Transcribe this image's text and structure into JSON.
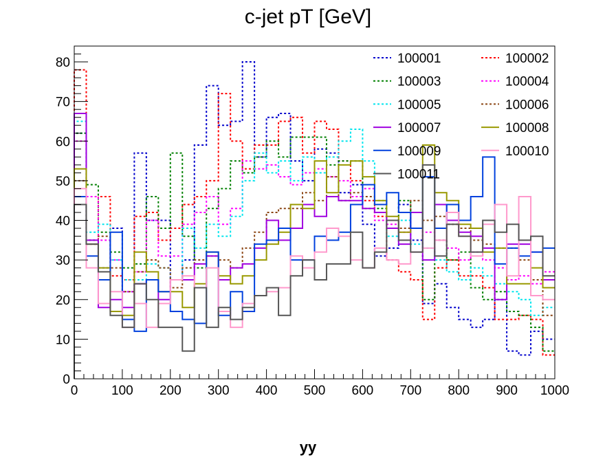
{
  "chart_data": {
    "type": "line",
    "title": "c-jet pT [GeV]",
    "xlabel": "yy",
    "ylabel": "",
    "xlim": [
      0,
      1000
    ],
    "ylim": [
      0,
      84
    ],
    "grid": false,
    "legend_placement": "top-right",
    "x_ticks": [
      "0",
      "100",
      "200",
      "300",
      "400",
      "500",
      "600",
      "700",
      "800",
      "900",
      "1000"
    ],
    "y_ticks": [
      "0",
      "10",
      "20",
      "30",
      "40",
      "50",
      "60",
      "70",
      "80"
    ],
    "bins": 40,
    "bin_width": 25,
    "x": [
      12.5,
      37.5,
      62.5,
      87.5,
      112.5,
      137.5,
      162.5,
      187.5,
      212.5,
      237.5,
      262.5,
      287.5,
      312.5,
      337.5,
      362.5,
      387.5,
      412.5,
      437.5,
      462.5,
      487.5,
      512.5,
      537.5,
      562.5,
      587.5,
      612.5,
      637.5,
      662.5,
      687.5,
      712.5,
      737.5,
      762.5,
      787.5,
      812.5,
      837.5,
      862.5,
      887.5,
      912.5,
      937.5,
      962.5,
      987.5
    ],
    "series": [
      {
        "name": "100001",
        "color": "#0000cc",
        "dash": "dotted",
        "values": [
          62,
          35,
          28,
          38,
          22,
          57,
          40,
          40,
          25,
          30,
          59,
          74,
          64,
          65,
          80,
          56,
          66,
          67,
          55,
          50,
          58,
          57,
          47,
          49,
          39,
          31,
          33,
          44,
          35,
          19,
          24,
          18,
          15,
          13,
          15,
          20,
          7,
          6,
          12,
          10
        ]
      },
      {
        "name": "100002",
        "color": "#ff0000",
        "dash": "dotted",
        "values": [
          78,
          34,
          46,
          26,
          25,
          41,
          42,
          35,
          38,
          44,
          46,
          50,
          72,
          60,
          53,
          59,
          59,
          65,
          66,
          57,
          65,
          63,
          55,
          50,
          45,
          41,
          30,
          27,
          25,
          15,
          28,
          30,
          26,
          26,
          23,
          15,
          15,
          16,
          15,
          6
        ]
      },
      {
        "name": "100003",
        "color": "#008000",
        "dash": "dotted",
        "values": [
          62,
          49,
          37,
          32,
          28,
          29,
          46,
          38,
          57,
          36,
          28,
          43,
          48,
          55,
          52,
          56,
          60,
          56,
          61,
          61,
          61,
          54,
          55,
          55,
          43,
          43,
          40,
          45,
          38,
          20,
          35,
          30,
          32,
          23,
          20,
          22,
          17,
          16,
          13,
          7
        ]
      },
      {
        "name": "100004",
        "color": "#ff00ff",
        "dash": "dotted",
        "values": [
          60,
          46,
          35,
          30,
          22,
          27,
          40,
          31,
          31,
          39,
          42,
          46,
          39,
          43,
          55,
          53,
          54,
          51,
          49,
          52,
          53,
          51,
          50,
          46,
          48,
          40,
          39,
          37,
          42,
          37,
          35,
          33,
          30,
          32,
          30,
          28,
          25,
          26,
          24,
          27
        ]
      },
      {
        "name": "100005",
        "color": "#00e5ee",
        "dash": "dotted",
        "values": [
          65,
          37,
          39,
          30,
          25,
          25,
          29,
          28,
          25,
          38,
          33,
          39,
          36,
          41,
          50,
          57,
          52,
          55,
          50,
          56,
          52,
          56,
          60,
          63,
          55,
          45,
          36,
          40,
          34,
          33,
          30,
          27,
          25,
          28,
          26,
          24,
          22,
          20,
          16,
          18
        ]
      },
      {
        "name": "100006",
        "color": "#8b4513",
        "dash": "dotted",
        "values": [
          50,
          35,
          36,
          28,
          22,
          27,
          30,
          28,
          23,
          28,
          30,
          31,
          30,
          28,
          33,
          37,
          42,
          43,
          43,
          47,
          45,
          51,
          45,
          47,
          46,
          42,
          40,
          38,
          45,
          40,
          41,
          39,
          38,
          35,
          34,
          33,
          33,
          30,
          25,
          16
        ]
      },
      {
        "name": "100007",
        "color": "#a000e0",
        "dash": "solid",
        "values": [
          67,
          35,
          18,
          20,
          18,
          24,
          25,
          20,
          25,
          25,
          29,
          31,
          25,
          28,
          29,
          33,
          40,
          35,
          38,
          44,
          41,
          46,
          45,
          45,
          43,
          42,
          38,
          34,
          42,
          30,
          44,
          40,
          37,
          36,
          33,
          20,
          34,
          34,
          32,
          25
        ]
      },
      {
        "name": "100008",
        "color": "#999900",
        "dash": "solid",
        "values": [
          53,
          34,
          28,
          17,
          16,
          32,
          27,
          22,
          22,
          18,
          24,
          32,
          26,
          24,
          26,
          30,
          34,
          37,
          44,
          43,
          55,
          47,
          54,
          55,
          51,
          45,
          41,
          37,
          38,
          59,
          47,
          45,
          39,
          38,
          32,
          33,
          24,
          24,
          28,
          23
        ]
      },
      {
        "name": "100009",
        "color": "#0040dd",
        "dash": "solid",
        "values": [
          46,
          31,
          25,
          37,
          15,
          12,
          25,
          22,
          17,
          15,
          14,
          32,
          16,
          22,
          17,
          34,
          35,
          38,
          30,
          30,
          36,
          35,
          37,
          44,
          49,
          44,
          47,
          42,
          38,
          51,
          38,
          44,
          40,
          46,
          56,
          29,
          33,
          31,
          32,
          33
        ]
      },
      {
        "name": "100010",
        "color": "#ff99cc",
        "dash": "solid",
        "values": [
          48,
          28,
          19,
          22,
          13,
          19,
          13,
          19,
          25,
          26,
          23,
          28,
          17,
          13,
          19,
          21,
          22,
          23,
          31,
          28,
          32,
          38,
          36,
          30,
          28,
          33,
          30,
          29,
          32,
          33,
          35,
          42,
          36,
          31,
          39,
          44,
          26,
          46,
          21,
          20
        ]
      },
      {
        "name": "100011",
        "color": "#555555",
        "dash": "solid",
        "values": [
          44,
          34,
          27,
          16,
          13,
          24,
          20,
          13,
          13,
          7,
          23,
          13,
          18,
          15,
          18,
          21,
          23,
          16,
          26,
          30,
          25,
          29,
          29,
          37,
          28,
          32,
          40,
          35,
          32,
          54,
          31,
          39,
          36,
          32,
          40,
          37,
          39,
          35,
          36,
          26
        ]
      }
    ]
  }
}
